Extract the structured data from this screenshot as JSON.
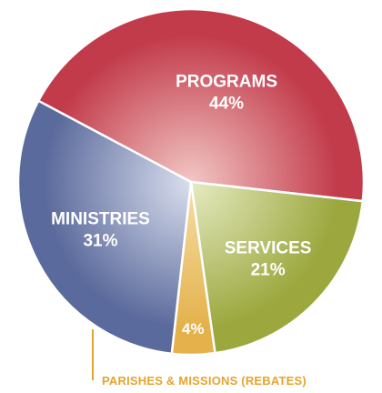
{
  "chart_data": {
    "type": "pie",
    "title": "",
    "slices": [
      {
        "label": "PROGRAMS",
        "value_label": "44%",
        "value": 44,
        "color": "#c23b4b",
        "highlight": "#f2c7c4"
      },
      {
        "label": "SERVICES",
        "value_label": "21%",
        "value": 21,
        "color": "#9ca83e",
        "highlight": "#e6ebc3"
      },
      {
        "label": "",
        "value_label": "4%",
        "value": 4,
        "color": "#e4b14b",
        "highlight": "#f6dfa8"
      },
      {
        "label": "MINISTRIES",
        "value_label": "31%",
        "value": 31,
        "color": "#5b6a9c",
        "highlight": "#dadfee"
      }
    ],
    "callout": {
      "text": "PARISHES & MISSIONS (REBATES)",
      "color": "#e4a42f"
    },
    "legend": "none"
  }
}
